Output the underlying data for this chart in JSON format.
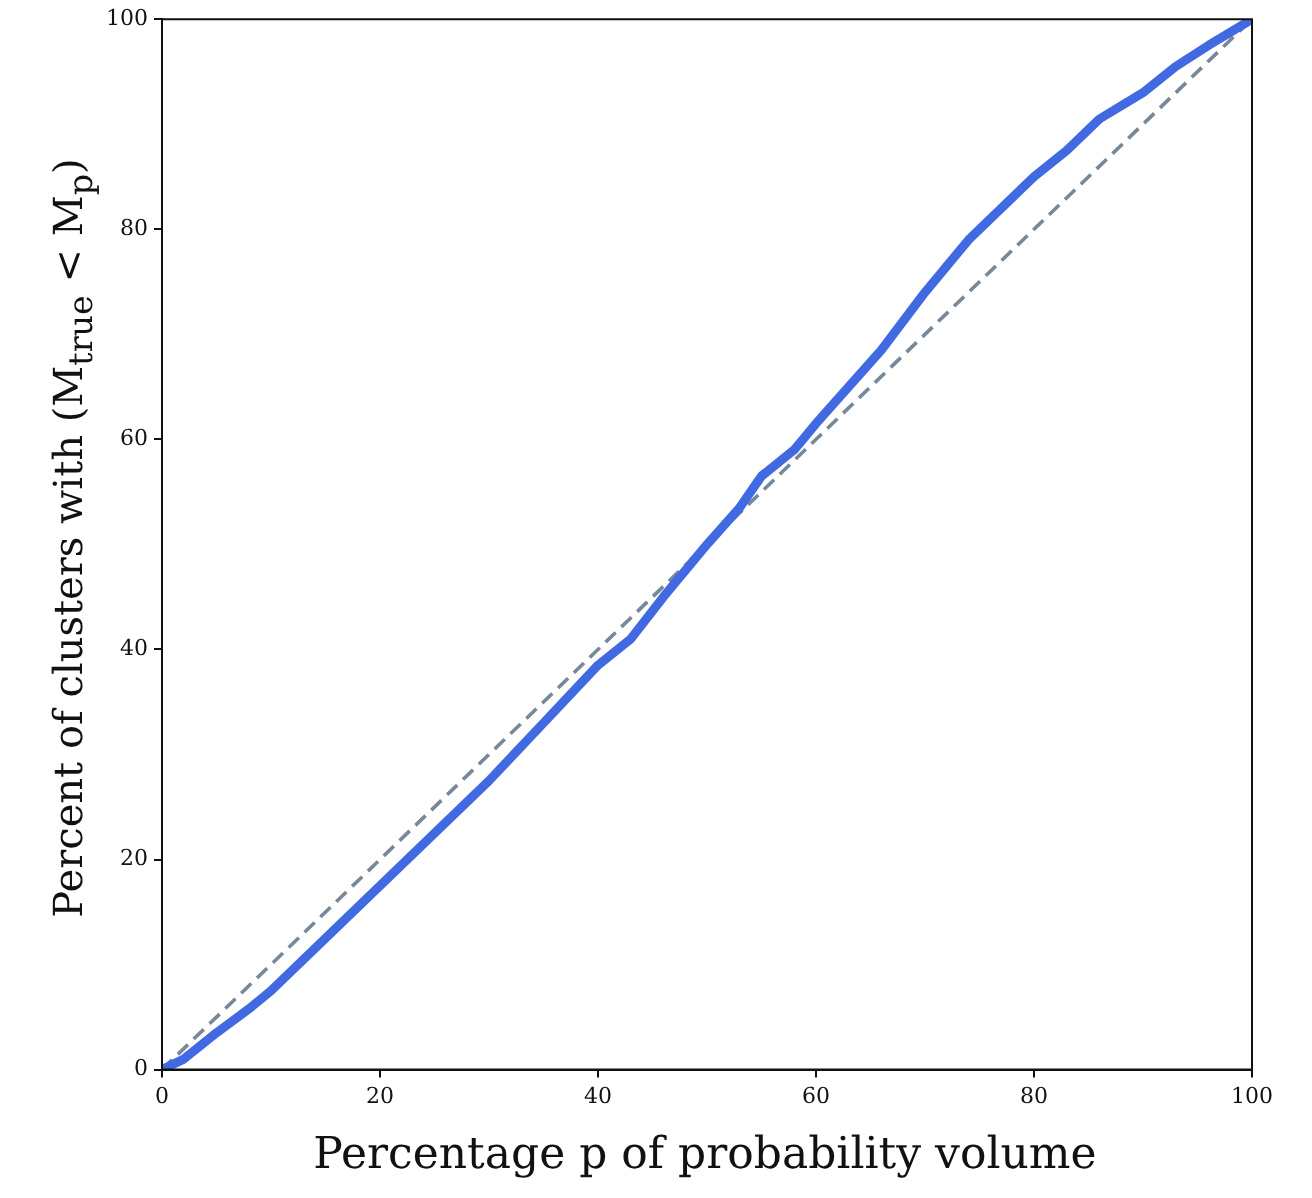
{
  "chart_data": {
    "type": "line",
    "xlabel": "Percentage p of probability volume",
    "ylabel": "Percent of clusters with (M$_{true}$ < M$_{p}$)",
    "xlim": [
      0,
      100
    ],
    "ylim": [
      0,
      100
    ],
    "xticks": [
      0,
      20,
      40,
      60,
      80,
      100
    ],
    "yticks": [
      0,
      20,
      40,
      60,
      80,
      100
    ],
    "grid": false,
    "legend": false,
    "marker": "none",
    "series": [
      {
        "type": "line",
        "color": "#4169e1",
        "line_style": "solid",
        "x": [
          0,
          2,
          5,
          8,
          10,
          13,
          16,
          20,
          25,
          30,
          35,
          40,
          43,
          46,
          50,
          53,
          55,
          58,
          60,
          63,
          66,
          70,
          74,
          78,
          80,
          83,
          86,
          90,
          93,
          96,
          100
        ],
        "values": [
          0,
          1,
          3.5,
          5.8,
          7.5,
          10.5,
          13.5,
          17.5,
          22.5,
          27.5,
          33,
          38.5,
          41,
          45,
          50,
          53.5,
          56.5,
          59,
          61.5,
          65,
          68.5,
          74,
          79,
          83,
          85,
          87.5,
          90.5,
          93,
          95.5,
          97.5,
          100
        ]
      },
      {
        "type": "line",
        "color": "#778899",
        "line_style": "dashed",
        "x": [
          0,
          100
        ],
        "values": [
          0,
          100
        ]
      }
    ]
  }
}
